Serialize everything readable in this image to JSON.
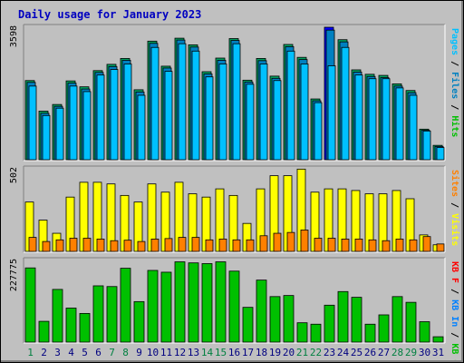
{
  "title": "Daily usage for January 2023",
  "colors": {
    "hits": "#00d0ff",
    "files": "#0080c0",
    "pages": "#00c0ff",
    "visits": "#ffff00",
    "sites": "#ff8000",
    "kbin": "#0080ff",
    "kbout": "#00c000",
    "kbf": "#ff0000",
    "weekday_label": "#000080",
    "weekend_label": "#008040",
    "highlight_hits": "#0000ff"
  },
  "chart_data": [
    {
      "type": "bar",
      "panel": "hits",
      "ymax_label": "3598",
      "ylim": [
        0,
        3598
      ],
      "side_labels": [
        {
          "text": "Pages",
          "color": "#00c0ff"
        },
        {
          "text": " / ",
          "color": "#000000"
        },
        {
          "text": "Files",
          "color": "#0080c0"
        },
        {
          "text": " / ",
          "color": "#000000"
        },
        {
          "text": "Hits",
          "color": "#00c000"
        }
      ],
      "categories": [
        "1",
        "2",
        "3",
        "4",
        "5",
        "6",
        "7",
        "8",
        "9",
        "10",
        "11",
        "12",
        "13",
        "14",
        "15",
        "16",
        "17",
        "18",
        "19",
        "20",
        "21",
        "22",
        "23",
        "24",
        "25",
        "26",
        "27",
        "28",
        "29",
        "30",
        "31"
      ],
      "series": [
        {
          "name": "Hits",
          "values": [
            2150,
            1320,
            1500,
            2140,
            1980,
            2420,
            2590,
            2750,
            1900,
            3220,
            2540,
            3300,
            3120,
            2390,
            2760,
            3290,
            2160,
            2750,
            2270,
            3130,
            2780,
            1650,
            3598,
            3260,
            2440,
            2320,
            2290,
            2060,
            1880,
            830,
            390
          ]
        },
        {
          "name": "Files",
          "values": [
            2100,
            1260,
            1450,
            2080,
            1920,
            2370,
            2530,
            2700,
            1840,
            3160,
            2490,
            3250,
            3060,
            2330,
            2700,
            3240,
            2110,
            2690,
            2210,
            3070,
            2720,
            1600,
            3520,
            3200,
            2380,
            2260,
            2230,
            2000,
            1820,
            800,
            360
          ]
        },
        {
          "name": "Pages",
          "values": [
            2000,
            1200,
            1400,
            2000,
            1850,
            2300,
            2450,
            2600,
            1750,
            3050,
            2400,
            3150,
            2950,
            2250,
            2600,
            3150,
            2050,
            2600,
            2150,
            2950,
            2600,
            1550,
            2550,
            3050,
            2300,
            2200,
            2200,
            1950,
            1750,
            780,
            330
          ]
        }
      ]
    },
    {
      "type": "bar",
      "panel": "visits",
      "ymax_label": "502",
      "ylim": [
        0,
        502
      ],
      "side_labels": [
        {
          "text": "Sites",
          "color": "#ff8000"
        },
        {
          "text": " / ",
          "color": "#000000"
        },
        {
          "text": "Visits",
          "color": "#ffff00"
        }
      ],
      "categories": [
        "1",
        "2",
        "3",
        "4",
        "5",
        "6",
        "7",
        "8",
        "9",
        "10",
        "11",
        "12",
        "13",
        "14",
        "15",
        "16",
        "17",
        "18",
        "19",
        "20",
        "21",
        "22",
        "23",
        "24",
        "25",
        "26",
        "27",
        "28",
        "29",
        "30",
        "31"
      ],
      "series": [
        {
          "name": "Visits",
          "values": [
            300,
            190,
            110,
            330,
            420,
            420,
            410,
            340,
            300,
            410,
            360,
            420,
            350,
            330,
            380,
            340,
            170,
            380,
            460,
            460,
            500,
            360,
            380,
            380,
            370,
            350,
            350,
            370,
            320,
            100,
            40
          ]
        },
        {
          "name": "Sites",
          "values": [
            85,
            60,
            70,
            80,
            80,
            75,
            65,
            68,
            60,
            75,
            78,
            85,
            85,
            70,
            75,
            70,
            70,
            95,
            110,
            115,
            130,
            80,
            80,
            75,
            75,
            70,
            65,
            75,
            70,
            90,
            45
          ]
        }
      ]
    },
    {
      "type": "bar",
      "panel": "kbytes",
      "ymax_label": "227775",
      "ylim": [
        0,
        227775
      ],
      "side_labels": [
        {
          "text": "KB F",
          "color": "#ff0000"
        },
        {
          "text": " / ",
          "color": "#000000"
        },
        {
          "text": "KB In",
          "color": "#0080ff"
        },
        {
          "text": " / ",
          "color": "#000000"
        },
        {
          "text": "KB Out",
          "color": "#00c000"
        }
      ],
      "categories": [
        "1",
        "2",
        "3",
        "4",
        "5",
        "6",
        "7",
        "8",
        "9",
        "10",
        "11",
        "12",
        "13",
        "14",
        "15",
        "16",
        "17",
        "18",
        "19",
        "20",
        "21",
        "22",
        "23",
        "24",
        "25",
        "26",
        "27",
        "28",
        "29",
        "30",
        "31"
      ],
      "series": [
        {
          "name": "KB Out",
          "values": [
            207000,
            58000,
            147000,
            95000,
            80000,
            157000,
            155000,
            206000,
            113000,
            200000,
            195000,
            224000,
            221000,
            219000,
            224000,
            198000,
            97000,
            173000,
            127000,
            130000,
            54000,
            50000,
            103000,
            141000,
            125000,
            50000,
            76000,
            127000,
            111000,
            57000,
            15000
          ]
        }
      ]
    }
  ]
}
